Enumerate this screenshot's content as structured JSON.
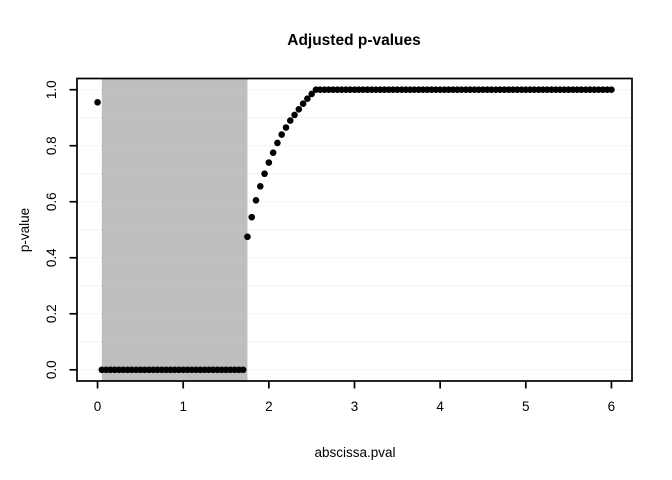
{
  "title": "Adjusted p-values",
  "x_axis": {
    "label": "abscissa.pval",
    "tick_labels": [
      "0",
      "1",
      "2",
      "3",
      "4",
      "5",
      "6"
    ],
    "tick_values": [
      0,
      1,
      2,
      3,
      4,
      5,
      6
    ]
  },
  "y_axis": {
    "label": "p-value",
    "tick_labels": [
      "0.0",
      "0.2",
      "0.4",
      "0.6",
      "0.8",
      "1.0"
    ],
    "tick_values": [
      0,
      0.2,
      0.4,
      0.6,
      0.8,
      1.0
    ]
  },
  "colors": {
    "points": "#000000",
    "shaded_region": "#bebebe",
    "gridline": "#d3d3d3",
    "axis": "#000000",
    "background": "#ffffff"
  },
  "chart_data": {
    "type": "scatter",
    "title": "Adjusted p-values",
    "xlabel": "abscissa.pval",
    "ylabel": "p-value",
    "xlim": [
      -0.24,
      6.24
    ],
    "ylim": [
      -0.04,
      1.04
    ],
    "grid": {
      "orientation": "horizontal",
      "step": 0.1,
      "from": 0.0,
      "to": 1.0,
      "style": "dotted",
      "color": "#d3d3d3"
    },
    "shaded_region": {
      "x_from": 0.05,
      "x_to": 1.75,
      "y_from": -0.04,
      "y_to": 1.04,
      "color": "#bebebe"
    },
    "legend": null,
    "series": [
      {
        "name": "adjusted p-values",
        "marker": "filled-circle",
        "color": "#000000",
        "runs": [
          {
            "type": "point",
            "x": 0.0,
            "y": 0.955
          },
          {
            "type": "run",
            "x_from": 0.05,
            "x_to": 1.7,
            "step": 0.05,
            "y": 0.0
          },
          {
            "type": "pairs",
            "points": [
              [
                1.75,
                0.475
              ],
              [
                1.8,
                0.545
              ],
              [
                1.85,
                0.605
              ],
              [
                1.9,
                0.655
              ],
              [
                1.95,
                0.7
              ],
              [
                2.0,
                0.74
              ],
              [
                2.05,
                0.775
              ],
              [
                2.1,
                0.81
              ],
              [
                2.15,
                0.84
              ],
              [
                2.2,
                0.865
              ],
              [
                2.25,
                0.89
              ],
              [
                2.3,
                0.91
              ],
              [
                2.35,
                0.93
              ],
              [
                2.4,
                0.95
              ],
              [
                2.45,
                0.968
              ],
              [
                2.5,
                0.985
              ]
            ]
          },
          {
            "type": "run",
            "x_from": 2.55,
            "x_to": 6.0,
            "step": 0.05,
            "y": 1.0
          }
        ]
      }
    ]
  }
}
